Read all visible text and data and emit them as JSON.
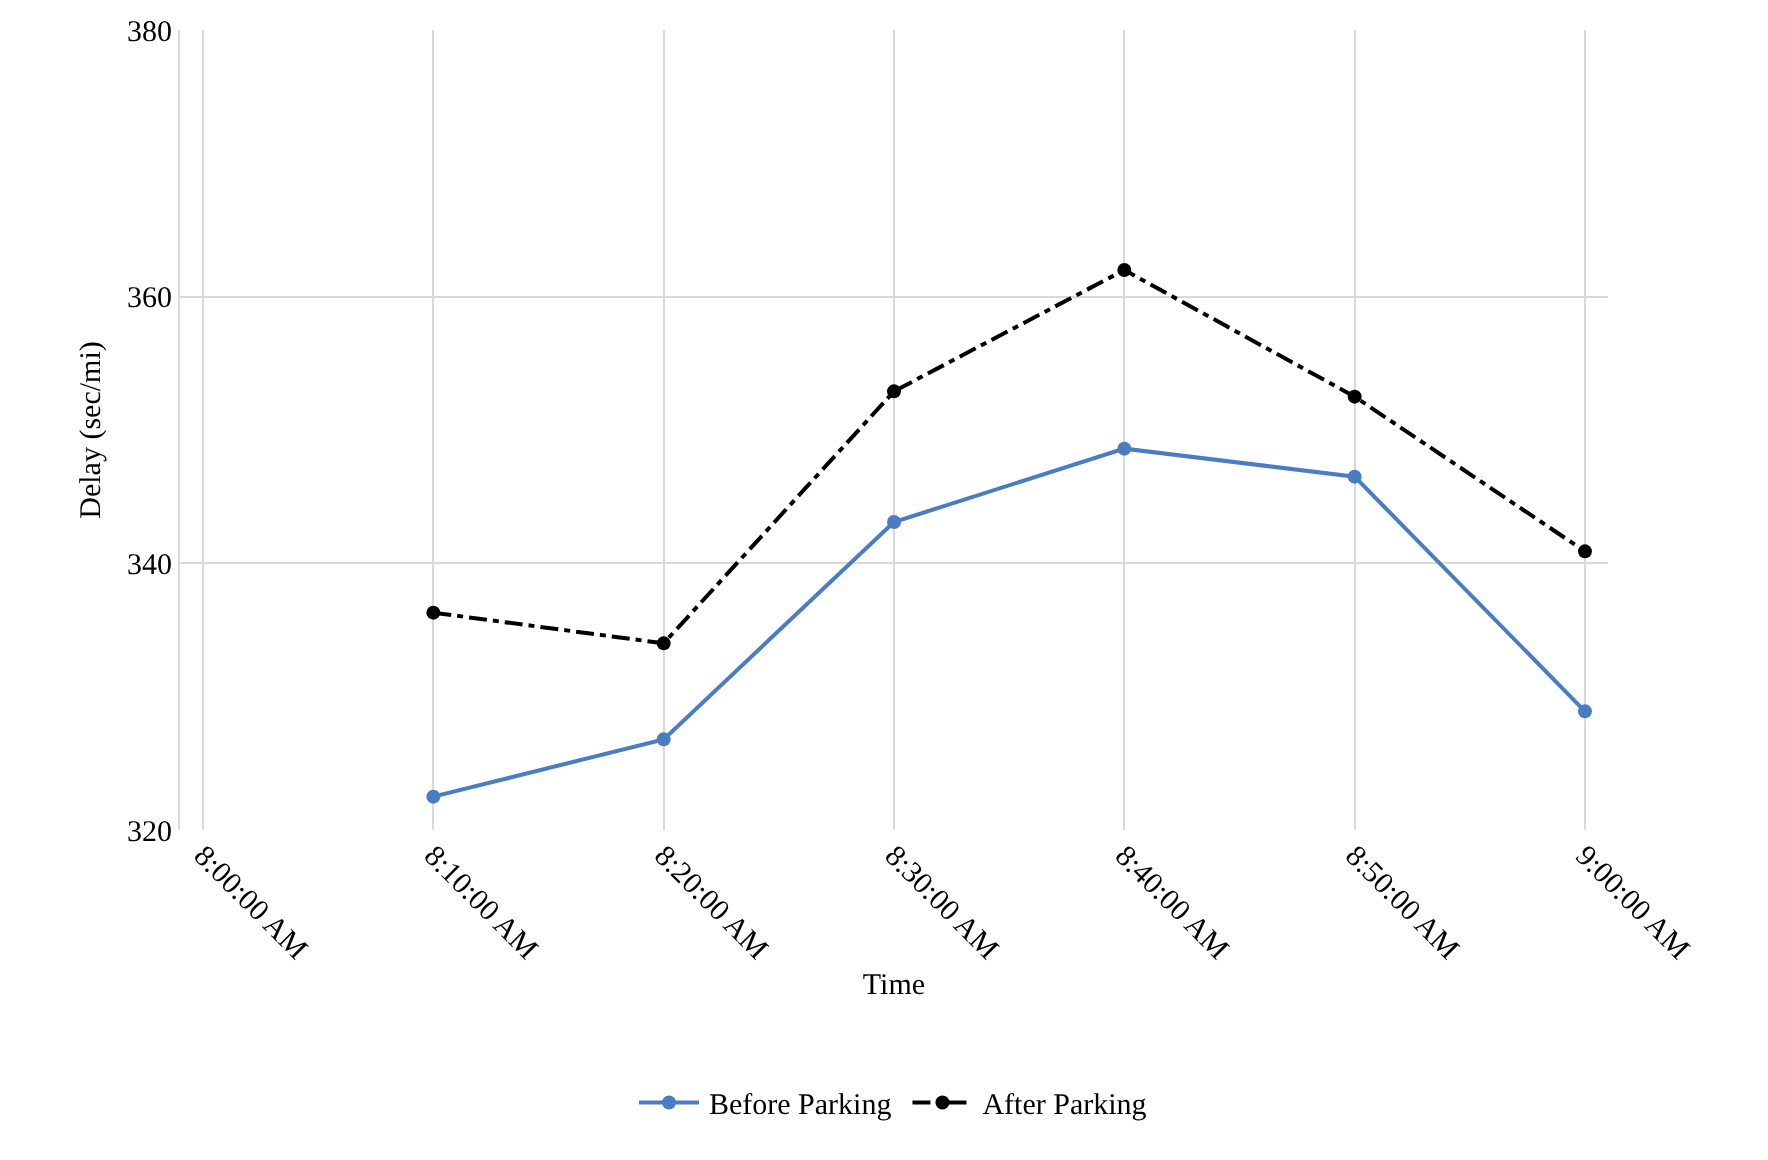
{
  "chart_data": {
    "type": "line",
    "xlabel": "Time",
    "ylabel": "Delay (sec/mi)",
    "categories": [
      "8:00:00 AM",
      "8:10:00 AM",
      "8:20:00 AM",
      "8:30:00 AM",
      "8:40:00 AM",
      "8:50:00 AM",
      "9:00:00 AM"
    ],
    "series": [
      {
        "name": "Before Parking",
        "color": "#4a7cc4",
        "line_style": "solid",
        "values": [
          null,
          322.5,
          326.8,
          343.1,
          348.6,
          346.5,
          328.9
        ]
      },
      {
        "name": "After Parking",
        "color": "#000000",
        "line_style": "dashed",
        "values": [
          null,
          336.3,
          334.0,
          352.9,
          362.0,
          352.5,
          340.9
        ]
      }
    ],
    "ylim": [
      320,
      380
    ],
    "yticks": [
      320,
      340,
      360,
      380
    ],
    "grid": true,
    "legend": "bottom",
    "marker": "circle"
  }
}
